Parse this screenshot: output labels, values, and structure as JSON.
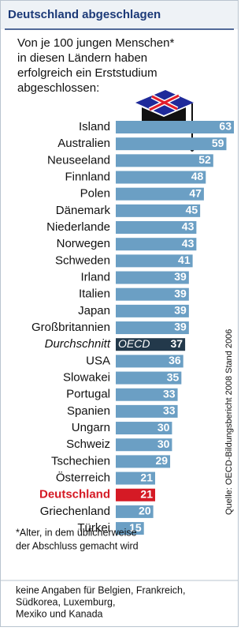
{
  "chart_data": {
    "type": "bar",
    "orientation": "horizontal",
    "title": "Deutschland abgeschlagen",
    "subtitle": [
      "Von je 100 jungen Menschen*",
      "in diesen Ländern haben",
      "erfolgreich ein Erststudium",
      "abgeschlossen:"
    ],
    "categories": [
      "Island",
      "Australien",
      "Neuseeland",
      "Finnland",
      "Polen",
      "Dänemark",
      "Niederlande",
      "Norwegen",
      "Schweden",
      "Irland",
      "Italien",
      "Japan",
      "Großbritannien",
      "Durchschnitt",
      "USA",
      "Slowakei",
      "Portugal",
      "Spanien",
      "Ungarn",
      "Schweiz",
      "Tschechien",
      "Österreich",
      "Deutschland",
      "Griechenland",
      "Türkei"
    ],
    "values": [
      63,
      59,
      52,
      48,
      47,
      45,
      43,
      43,
      41,
      39,
      39,
      39,
      39,
      37,
      36,
      35,
      33,
      33,
      30,
      30,
      29,
      21,
      21,
      20,
      15
    ],
    "color": "#6b9fc4",
    "average": {
      "category": "Durchschnitt",
      "label": "OECD",
      "color": "#23394b"
    },
    "highlight": {
      "category": "Deutschland",
      "color": "#d51a25"
    },
    "source": "Quelle: OECD-Bildungsbericht 2008  Stand 2006",
    "footnote": [
      "*Alter, in dem üblicherweise",
      "der Abschluss gemacht wird"
    ],
    "note": [
      "keine Angaben für Belgien, Frankreich,",
      "Südkorea, Luxemburg,",
      "Mexiko und Kanada"
    ]
  }
}
